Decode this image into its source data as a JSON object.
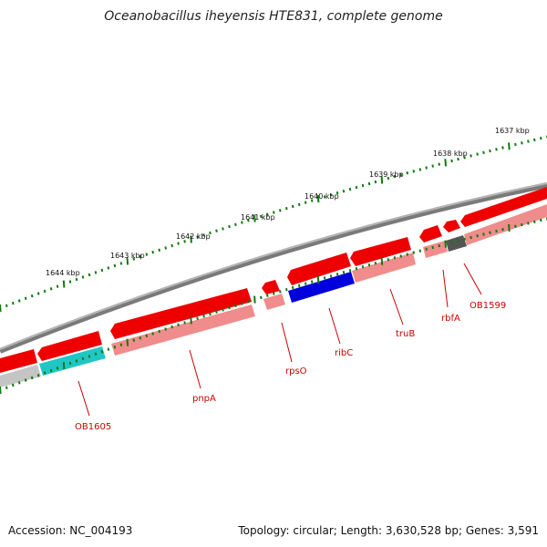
{
  "title": "Oceanobacillus iheyensis HTE831, complete genome",
  "footer": {
    "accession": "Accession: NC_004193",
    "summary": "Topology: circular; Length: 3,630,528 bp; Genes: 3,591"
  },
  "kbp_labels": [
    "1637 kbp",
    "1638 kbp",
    "1639 kbp",
    "1640 kbp",
    "1641 kbp",
    "1642 kbp",
    "1643 kbp",
    "1644 kbp"
  ],
  "gene_labels": [
    "OB1599",
    "rbfA",
    "truB",
    "ribC",
    "rpsO",
    "pnpA",
    "OB1605"
  ],
  "colors": {
    "forward_gene": "#ee0000",
    "reverse_light": "#f08c8c",
    "backbone": "#7a7a7a",
    "tick": "#117a11",
    "ribC_blue": "#0000dd",
    "OB1605_cyan": "#20c6c6",
    "OB1599_gray": "#555555",
    "label_red": "#cc0000"
  }
}
